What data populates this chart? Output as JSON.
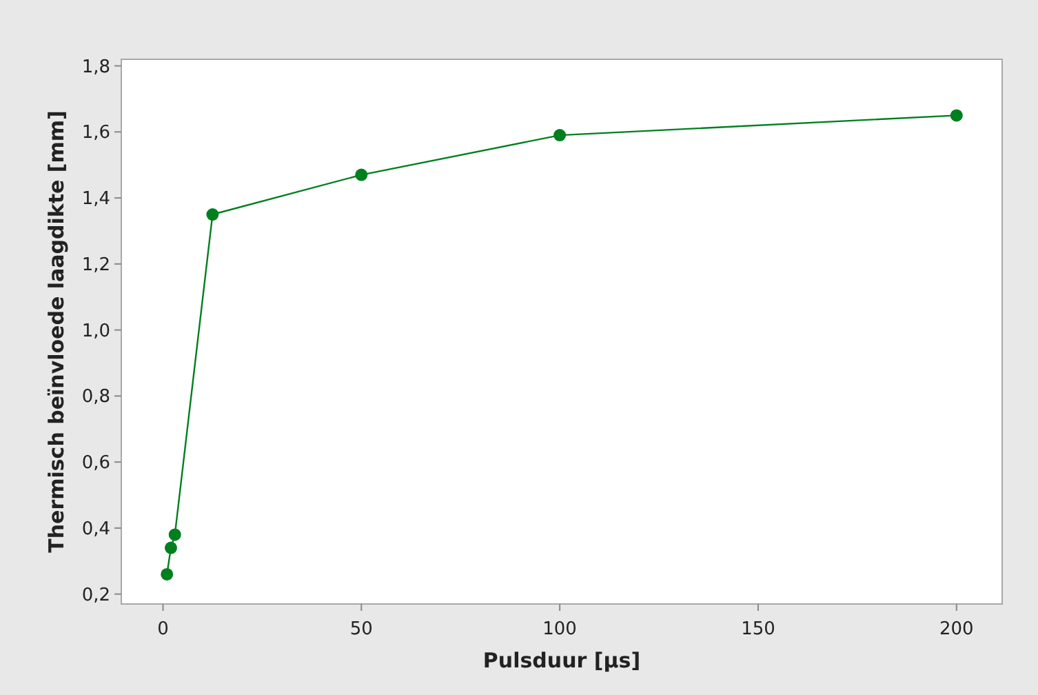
{
  "chart_data": {
    "type": "line",
    "xlabel": "Pulsduur [µs]",
    "ylabel": "Thermisch beïnvloede laagdikte [mm]",
    "x": [
      1,
      2,
      3,
      12.5,
      50,
      100,
      200
    ],
    "series": [
      {
        "color": "#007f1f",
        "values": [
          0.26,
          0.34,
          0.38,
          1.35,
          1.47,
          1.59,
          1.65
        ]
      }
    ],
    "xlim": [
      -10.5,
      211.5
    ],
    "xticks": [
      0,
      50,
      100,
      150,
      200
    ],
    "ylim": [
      0.17,
      1.82
    ],
    "yticks": [
      {
        "value": 0.2,
        "label": "0,2"
      },
      {
        "value": 0.4,
        "label": "0,4"
      },
      {
        "value": 0.6,
        "label": "0,6"
      },
      {
        "value": 0.8,
        "label": "0,8"
      },
      {
        "value": 1.0,
        "label": "1,0"
      },
      {
        "value": 1.2,
        "label": "1,2"
      },
      {
        "value": 1.4,
        "label": "1,4"
      },
      {
        "value": 1.6,
        "label": "1,6"
      },
      {
        "value": 1.8,
        "label": "1,8"
      }
    ],
    "marker": "circle",
    "line_style": "solid"
  }
}
